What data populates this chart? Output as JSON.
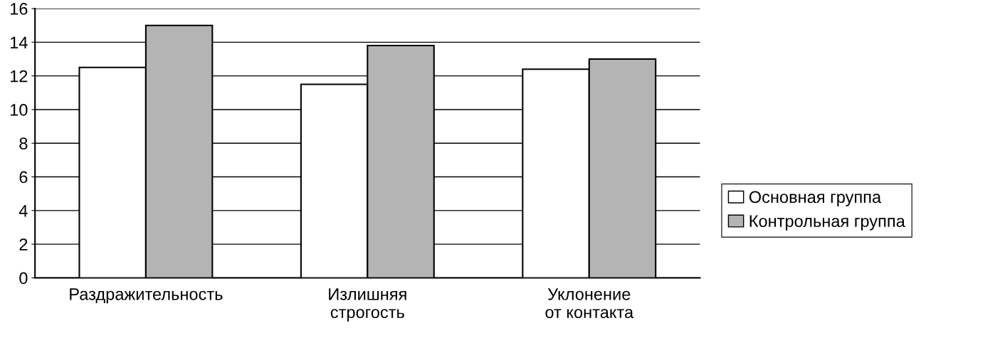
{
  "chart_data": {
    "type": "bar",
    "categories": [
      "Раздражительность",
      "Излишняя\nстрогость",
      "Уклонение\nот контакта"
    ],
    "series": [
      {
        "name": "Основная группа",
        "color": "#ffffff",
        "values": [
          12.5,
          11.5,
          12.4
        ]
      },
      {
        "name": "Контрольная группа",
        "color": "#b4b4b4",
        "values": [
          15,
          13.8,
          13
        ]
      }
    ],
    "ylim": [
      0,
      16
    ],
    "yticks": [
      0,
      2,
      4,
      6,
      8,
      10,
      12,
      14,
      16
    ],
    "grid": "y",
    "legend": "right"
  }
}
